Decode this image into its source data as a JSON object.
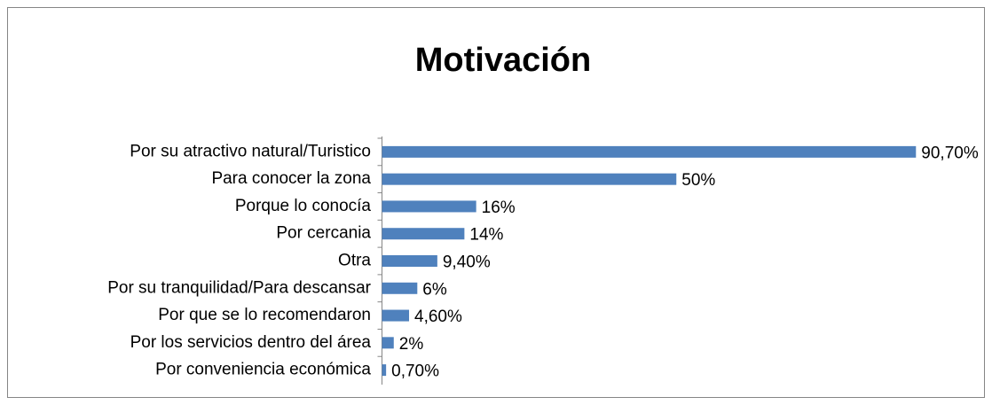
{
  "chart_data": {
    "type": "barh",
    "title": "Motivación",
    "categories": [
      "Por su atractivo natural/Turistico",
      "Para conocer la zona",
      "Porque lo conocía",
      "Por cercania",
      "Otra",
      "Por su tranquilidad/Para descansar",
      "Por que se lo recomendaron",
      "Por los servicios dentro del área",
      "Por conveniencia económica"
    ],
    "values": [
      90.7,
      50,
      16,
      14,
      9.4,
      6,
      4.6,
      2,
      0.7
    ],
    "value_labels": [
      "90,70%",
      "50%",
      "16%",
      "14%",
      "9,40%",
      "6%",
      "4,60%",
      "2%",
      "0,70%"
    ],
    "color": "#4f81bd",
    "xlim": [
      0,
      100
    ]
  }
}
